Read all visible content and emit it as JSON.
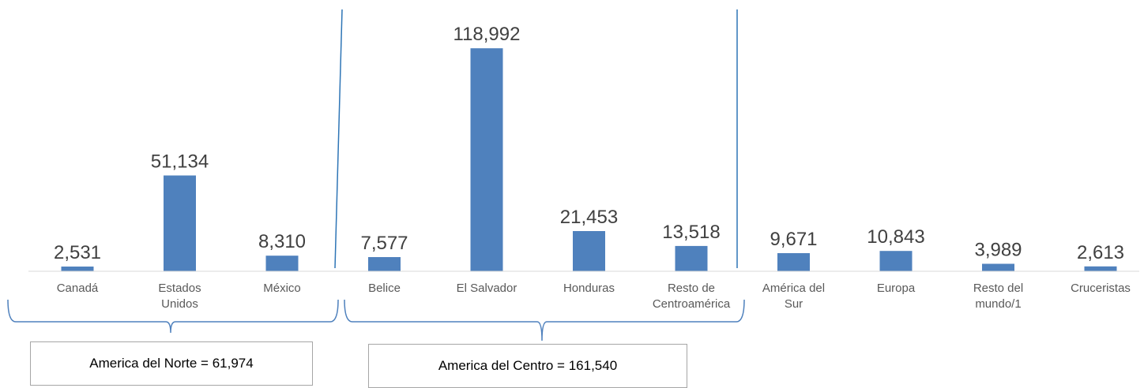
{
  "chart_data": {
    "type": "bar",
    "title": "",
    "xlabel": "",
    "ylabel": "",
    "ylim": [
      0,
      130000
    ],
    "grid": false,
    "legend": "none",
    "color": "#4f81bd",
    "categories": [
      [
        "Canadá"
      ],
      [
        "Estados",
        "Unidos"
      ],
      [
        "México"
      ],
      [
        "Belice"
      ],
      [
        "El Salvador"
      ],
      [
        "Honduras"
      ],
      [
        "Resto de",
        "Centroamérica"
      ],
      [
        "América del",
        "Sur"
      ],
      [
        "Europa"
      ],
      [
        "Resto del",
        "mundo/1"
      ],
      [
        "Cruceristas"
      ]
    ],
    "values": [
      2531,
      51134,
      8310,
      7577,
      118992,
      21453,
      13518,
      9671,
      10843,
      3989,
      2613
    ],
    "value_labels": [
      "2,531",
      "51,134",
      "8,310",
      "7,577",
      "118,992",
      "21,453",
      "13,518",
      "9,671",
      "10,843",
      "3,989",
      "2,613"
    ]
  },
  "groups": {
    "norte_label": "America del Norte = 61,974",
    "centro_label": "America del Centro = 161,540"
  }
}
